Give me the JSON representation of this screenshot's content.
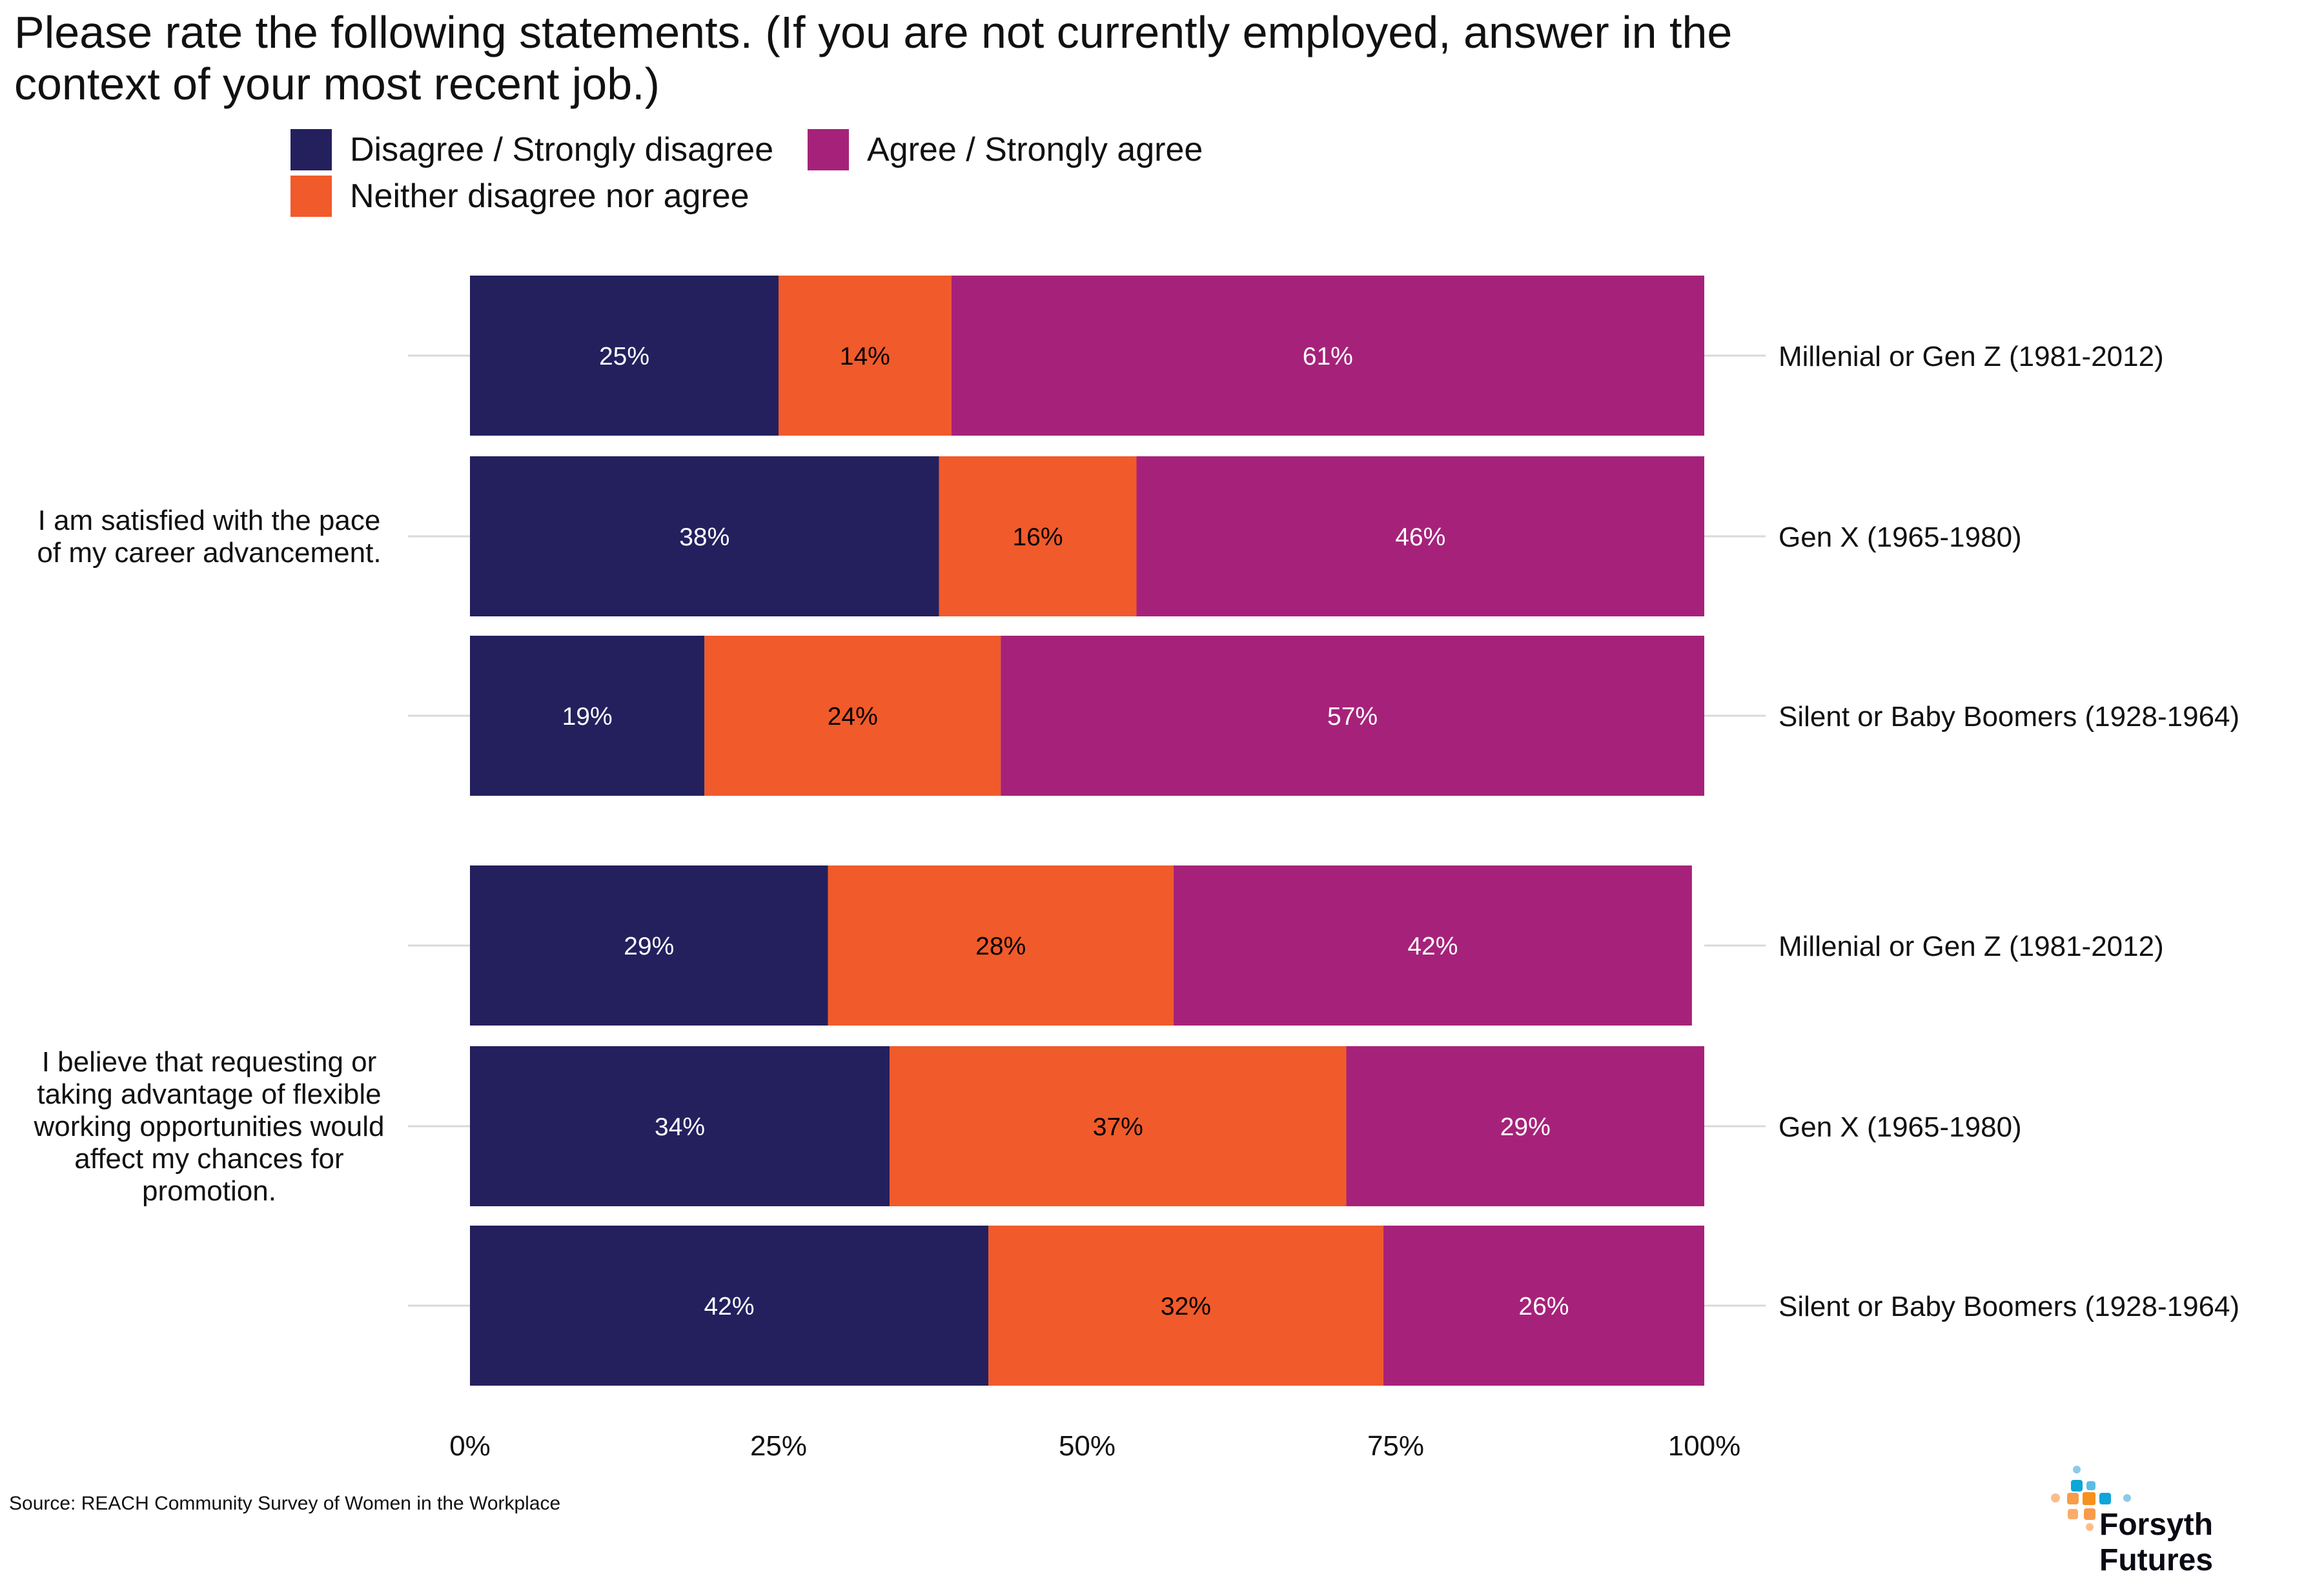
{
  "chart_data": {
    "type": "bar",
    "orientation": "horizontal",
    "stacked": true,
    "title": "Please rate the following statements. (If you are not currently employed, answer in the context of your most recent job.)",
    "legend": {
      "placement": "top",
      "entries": [
        {
          "name": "Disagree / Strongly disagree",
          "color": "#24205e"
        },
        {
          "name": "Agree / Strongly agree",
          "color": "#a6227a"
        },
        {
          "name": "Neither disagree nor agree",
          "color": "#f15a2b"
        }
      ]
    },
    "series_order": [
      "Disagree / Strongly disagree",
      "Neither disagree nor agree",
      "Agree / Strongly agree"
    ],
    "series_colors": [
      "#24205e",
      "#f15a2b",
      "#a6227a"
    ],
    "label_colors": [
      "#ffffff",
      "#000000",
      "#ffffff"
    ],
    "groups": [
      {
        "statement": "I am satisfied with the pace of my career advancement.",
        "statement_lines": [
          "I am satisfied with the pace",
          "of my career advancement."
        ],
        "rows": [
          {
            "category": "Millenial or Gen Z (1981-2012)",
            "values": [
              25,
              14,
              61
            ],
            "labels": [
              "25%",
              "14%",
              "61%"
            ]
          },
          {
            "category": "Gen X (1965-1980)",
            "values": [
              38,
              16,
              46
            ],
            "labels": [
              "38%",
              "16%",
              "46%"
            ]
          },
          {
            "category": "Silent or Baby Boomers (1928-1964)",
            "values": [
              19,
              24,
              57
            ],
            "labels": [
              "19%",
              "24%",
              "57%"
            ]
          }
        ]
      },
      {
        "statement": "I believe that requesting or taking advantage of flexible working opportunities would affect my chances for promotion.",
        "statement_lines": [
          "I believe that requesting or",
          "taking advantage of flexible",
          "working opportunities would",
          "affect my chances for",
          "promotion."
        ],
        "rows": [
          {
            "category": "Millenial or Gen Z (1981-2012)",
            "values": [
              29,
              28,
              42
            ],
            "labels": [
              "29%",
              "28%",
              "42%"
            ]
          },
          {
            "category": "Gen X (1965-1980)",
            "values": [
              34,
              37,
              29
            ],
            "labels": [
              "34%",
              "37%",
              "29%"
            ]
          },
          {
            "category": "Silent or Baby Boomers (1928-1964)",
            "values": [
              42,
              32,
              26
            ],
            "labels": [
              "42%",
              "32%",
              "26%"
            ]
          }
        ]
      }
    ],
    "x_ticks": [
      "0%",
      "25%",
      "50%",
      "75%",
      "100%"
    ],
    "xlim": [
      0,
      100
    ],
    "grid": false
  },
  "title_lines": [
    "Please rate the following statements. (If you are not currently employed, answer in the",
    "context of your most recent job.)"
  ],
  "source": "Source: REACH Community Survey of Women in the Workplace",
  "logo": {
    "text": "Forsyth Futures"
  }
}
